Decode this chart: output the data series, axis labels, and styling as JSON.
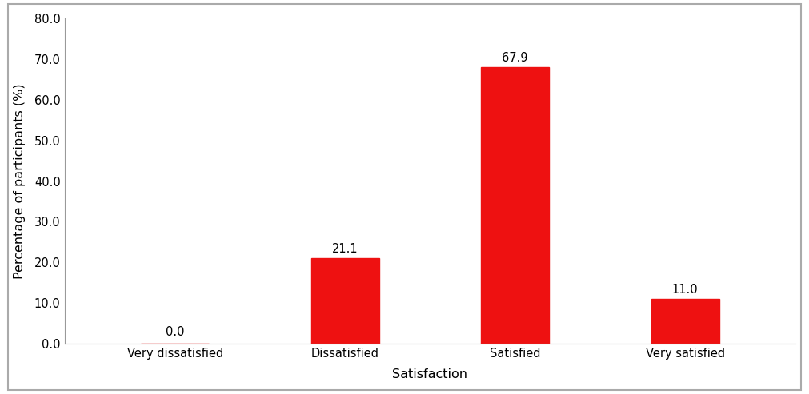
{
  "categories": [
    "Very dissatisfied",
    "Dissatisfied",
    "Satisfied",
    "Very satisfied"
  ],
  "values": [
    0.0,
    21.1,
    67.9,
    11.0
  ],
  "bar_color": "#ee1111",
  "xlabel": "Satisfaction",
  "ylabel": "Percentage of participants (%)",
  "ylim": [
    0,
    80
  ],
  "yticks": [
    0.0,
    10.0,
    20.0,
    30.0,
    40.0,
    50.0,
    60.0,
    70.0,
    80.0
  ],
  "label_fontsize": 11.5,
  "tick_fontsize": 10.5,
  "value_fontsize": 10.5,
  "background_color": "#ffffff",
  "bar_width": 0.4,
  "spine_color": "#999999",
  "figure_border_color": "#aaaaaa"
}
